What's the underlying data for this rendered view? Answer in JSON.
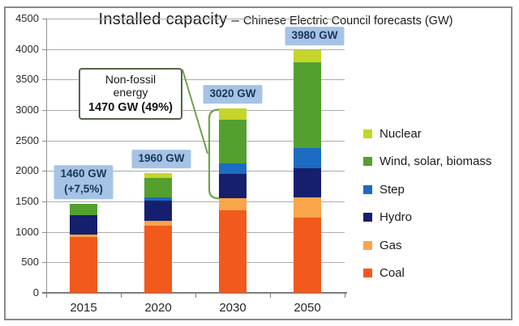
{
  "chart_data": {
    "type": "bar",
    "stacked": true,
    "title": "Installed capacity",
    "title_separator": "–",
    "subtitle": "Chinese Electric Council forecasts (GW)",
    "categories": [
      "2015",
      "2020",
      "2030",
      "2050"
    ],
    "series": [
      {
        "name": "Coal",
        "color": "#F1591D",
        "values": [
          910,
          1100,
          1350,
          1240
        ]
      },
      {
        "name": "Gas",
        "color": "#F9A54A",
        "values": [
          40,
          80,
          200,
          330
        ]
      },
      {
        "name": "Hydro",
        "color": "#161F6E",
        "values": [
          330,
          330,
          400,
          480
        ]
      },
      {
        "name": "Step",
        "color": "#1B6CC2",
        "values": [
          0,
          50,
          170,
          330
        ]
      },
      {
        "name": "Wind, solar, biomass",
        "color": "#53A02F",
        "values": [
          180,
          320,
          720,
          1400
        ]
      },
      {
        "name": "Nuclear",
        "color": "#C6D52A",
        "values": [
          0,
          80,
          180,
          200
        ]
      }
    ],
    "totals": [
      1460,
      1960,
      3020,
      3980
    ],
    "bar_total_labels": [
      [
        "1460 GW",
        "(+7,5%)"
      ],
      [
        "1960 GW"
      ],
      [
        "3020 GW"
      ],
      [
        "3980 GW"
      ]
    ],
    "ylim": [
      0,
      4500
    ],
    "yticks": [
      0,
      500,
      1000,
      1500,
      2000,
      2500,
      3000,
      3500,
      4000,
      4500
    ],
    "grid": true,
    "legend_position": "right",
    "legend_order": [
      "Nuclear",
      "Wind, solar, biomass",
      "Step",
      "Hydro",
      "Gas",
      "Coal"
    ],
    "annotation": {
      "text_lines": [
        "Non-fossil",
        "energy"
      ],
      "value_line": "1470 GW (49%)",
      "target_category": "2030",
      "covers_series": [
        "Hydro",
        "Step",
        "Wind, solar, biomass",
        "Nuclear"
      ]
    },
    "colors": {
      "value_label_bg": "#A6C3E5",
      "value_label_text": "#17375E",
      "annotation_line": "#6FA24C",
      "annotation_box_border": "#55644A",
      "gridline": "#ACACAC",
      "axis": "#7D7D7D"
    }
  }
}
